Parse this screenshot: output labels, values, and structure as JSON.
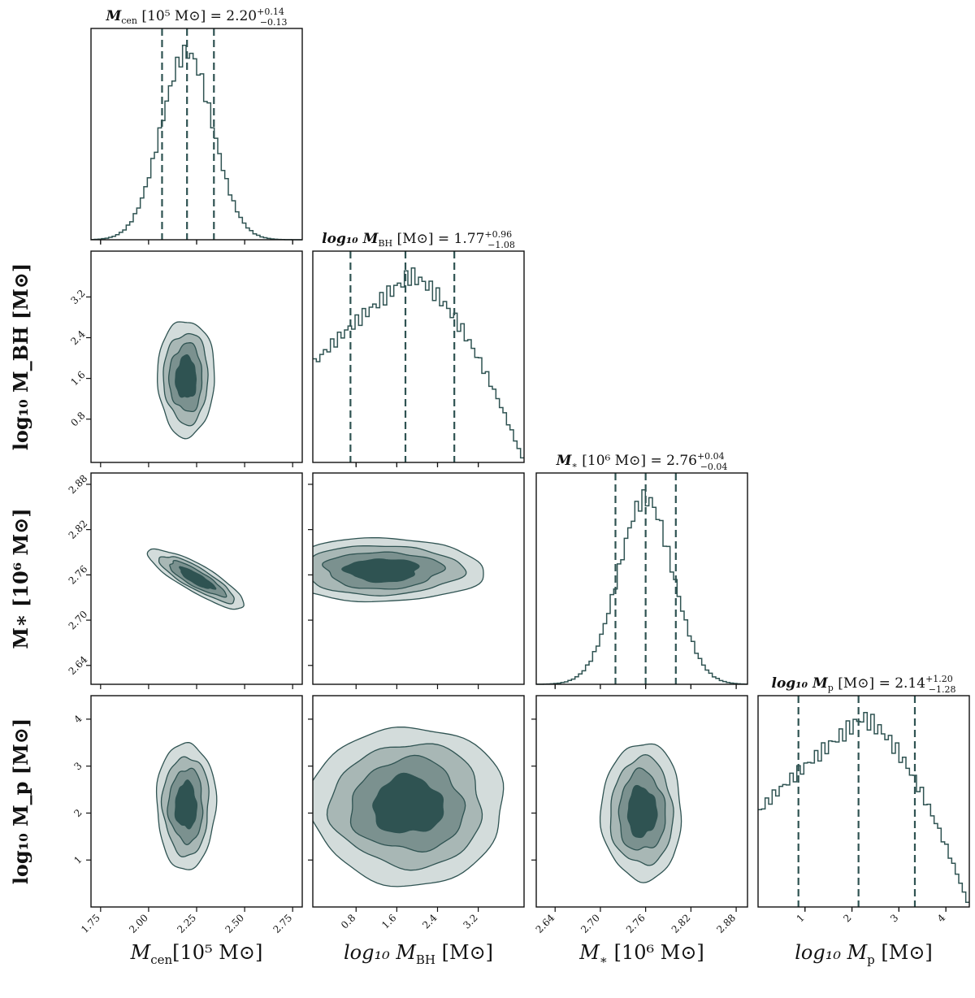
{
  "colors": {
    "line": "#2f5352",
    "levels": [
      "#d3dcdb",
      "#a8b7b5",
      "#7b918f",
      "#2f5352"
    ],
    "frame": "#111111"
  },
  "chart_data": {
    "type": "corner",
    "parameters": [
      {
        "id": "mcen",
        "label": "M_cen [10^5 M_⊙]",
        "xlabel": "M",
        "xsub": "cen",
        "xunit": "[10⁵ M⊙]",
        "ylabel": "",
        "range": [
          1.7,
          2.8
        ],
        "ticks": [
          "1.75",
          "2.00",
          "2.25",
          "2.50",
          "2.75"
        ],
        "title": {
          "prefix": "M",
          "sub": "cen",
          "unit": " [10⁵ M⊙] = 2.20",
          "sup": "+0.14",
          "inf": "−0.13"
        },
        "median": 2.2,
        "lower": 2.07,
        "upper": 2.34,
        "hist": {
          "mu": 2.2,
          "sigma": 0.135
        }
      },
      {
        "id": "mbh",
        "label": "log10 M_BH [M_⊙]",
        "xlabel": "log₁₀ M",
        "xsub": "BH",
        "xunit": " [M⊙]",
        "ylabel": "log₁₀ M_BH [M⊙]",
        "range": [
          -0.05,
          4.1
        ],
        "ticks": [
          "0.8",
          "1.6",
          "2.4",
          "3.2"
        ],
        "title": {
          "prefix": "log₁₀ M",
          "sub": "BH",
          "unit": " [M⊙] = 1.77",
          "sup": "+0.96",
          "inf": "−1.08"
        },
        "median": 1.77,
        "lower": 0.69,
        "upper": 2.73,
        "hist": {
          "peak": 1.85,
          "base": 0.52
        }
      },
      {
        "id": "mstar",
        "label": "M_* [10^6 M_⊙]",
        "xlabel": "M",
        "xsub": "∗",
        "xunit": " [10⁶ M⊙]",
        "ylabel": "M∗ [10⁶ M⊙]",
        "range": [
          2.615,
          2.895
        ],
        "ticks": [
          "2.64",
          "2.70",
          "2.76",
          "2.82",
          "2.88"
        ],
        "title": {
          "prefix": "M",
          "sub": "∗",
          "unit": " [10⁶ M⊙] = 2.76",
          "sup": "+0.04",
          "inf": "−0.04"
        },
        "median": 2.76,
        "lower": 2.72,
        "upper": 2.8,
        "hist": {
          "mu": 2.76,
          "sigma": 0.036
        }
      },
      {
        "id": "mp",
        "label": "log10 M_p [M_⊙]",
        "xlabel": "log₁₀ M",
        "xsub": "p",
        "xunit": " [M⊙]",
        "ylabel": "log₁₀ M_p [M⊙]",
        "range": [
          0.0,
          4.5
        ],
        "ticks": [
          "1",
          "2",
          "3",
          "4"
        ],
        "title": {
          "prefix": "log₁₀ M",
          "sub": "p",
          "unit": " [M⊙] = 2.14",
          "sup": "+1.20",
          "inf": "−1.28"
        },
        "median": 2.14,
        "lower": 0.86,
        "upper": 3.34,
        "hist": {
          "peak": 2.2,
          "base": 0.5
        }
      }
    ],
    "contour_levels": 4,
    "correlations": {
      "mstar_mcen": -0.93,
      "mbh_mcen": 0.0,
      "mp_mcen": 0.0,
      "mbh_mstar": 0.0,
      "mp_mstar": 0.0,
      "mp_mbh": 0.0
    }
  }
}
